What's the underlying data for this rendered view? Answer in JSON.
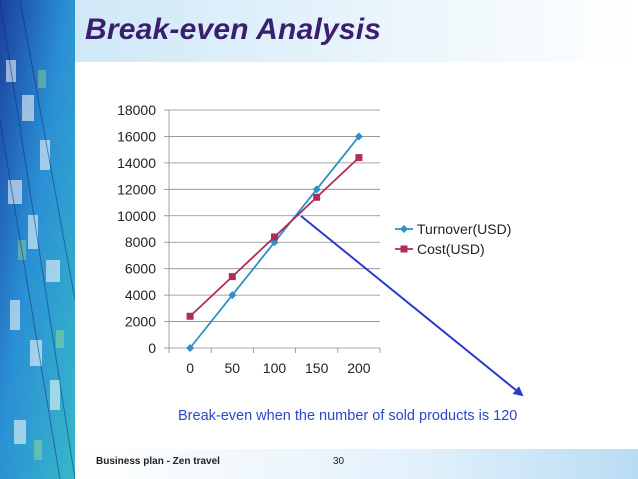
{
  "slide": {
    "title": "Break-even Analysis",
    "annotation": "Break-even when the number of sold products is 120",
    "footer_left": "Business plan - Zen travel",
    "page_number": "30",
    "colors": {
      "title": "#3b1f6e",
      "annotation": "#2b46c8",
      "arrow": "#2b3bd0",
      "turnover": "#2f8fc7",
      "cost": "#b02c5d"
    }
  },
  "chart_data": {
    "type": "line",
    "title": "",
    "xlabel": "",
    "ylabel": "",
    "categories": [
      "0",
      "50",
      "100",
      "150",
      "200"
    ],
    "yticks": [
      "0",
      "2000",
      "4000",
      "6000",
      "8000",
      "10000",
      "12000",
      "14000",
      "16000",
      "18000"
    ],
    "ylim": [
      0,
      18000
    ],
    "grid": true,
    "legend_position": "right",
    "series": [
      {
        "name": "Turnover(USD)",
        "values": [
          0,
          4000,
          8000,
          12000,
          16000
        ],
        "marker": "diamond"
      },
      {
        "name": "Cost(USD)",
        "values": [
          2400,
          5400,
          8400,
          11400,
          14400
        ],
        "marker": "square"
      }
    ]
  }
}
